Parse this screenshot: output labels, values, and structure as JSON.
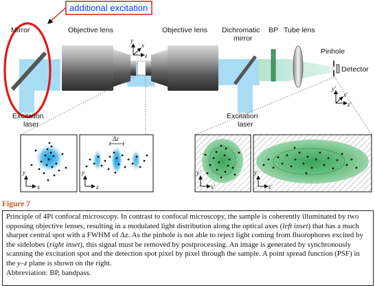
{
  "callout": "additional excitation",
  "labels": {
    "mirror": "Mirror",
    "objective_left": "Objective lens",
    "objective_right": "Objective lens",
    "dichromatic_line1": "Dichromatic",
    "dichromatic_line2": "mirror",
    "bp": "BP",
    "tube_lens": "Tube lens",
    "pinhole": "Pinhole",
    "detector": "Detector",
    "excitation_laser_left_line1": "Excitation",
    "excitation_laser_left_line2": "laser",
    "excitation_laser_right_line1": "Excitation",
    "excitation_laser_right_line2": "laser"
  },
  "axes": {
    "beam_y": "y",
    "beam_x": "x",
    "beam_z": "z",
    "pinhole_y": "y'",
    "pinhole_x": "x'",
    "pinhole_z": "z'",
    "inset1_y": "y",
    "inset1_h": "x",
    "inset2_y": "y",
    "inset2_h": "z",
    "inset3_y": "y'",
    "inset3_h": "x'",
    "inset4_y": "y'",
    "inset4_h": "z'"
  },
  "delta_z": "Δz",
  "figure_title": "Figure 7",
  "caption_parts": {
    "p1": "Principle of 4Pi confocal microscopy. In contrast to confocal microscopy, the sample is coherently illuminated by two opposing objective lenses, resulting in a modulated light distribution along the optical axes (",
    "left_inset": "left inset",
    "p2": ") that has a much sharper central spot with a FWHM of Δz. As the pinhole is not able to reject light coming from fluorophores excited by the sidelobes (",
    "right_inset": "right inset",
    "p3": "), this signal must be removed by postprocessing. An image is generated by synchronously scanning the excitation spot and the detection spot pixel by pixel through the sample. A point spread function (PSF) in the ",
    "yz": "y–z",
    "p4": " plane is shown on the right.",
    "abbrev": "Abbreviation: BP, bandpass."
  },
  "colors": {
    "beam": "#a8dcf5",
    "excitation_spot": "#2aa6e0",
    "psf_green": "#3aa65a",
    "callout_red": "#e01818",
    "title_orange": "#c05a28"
  }
}
